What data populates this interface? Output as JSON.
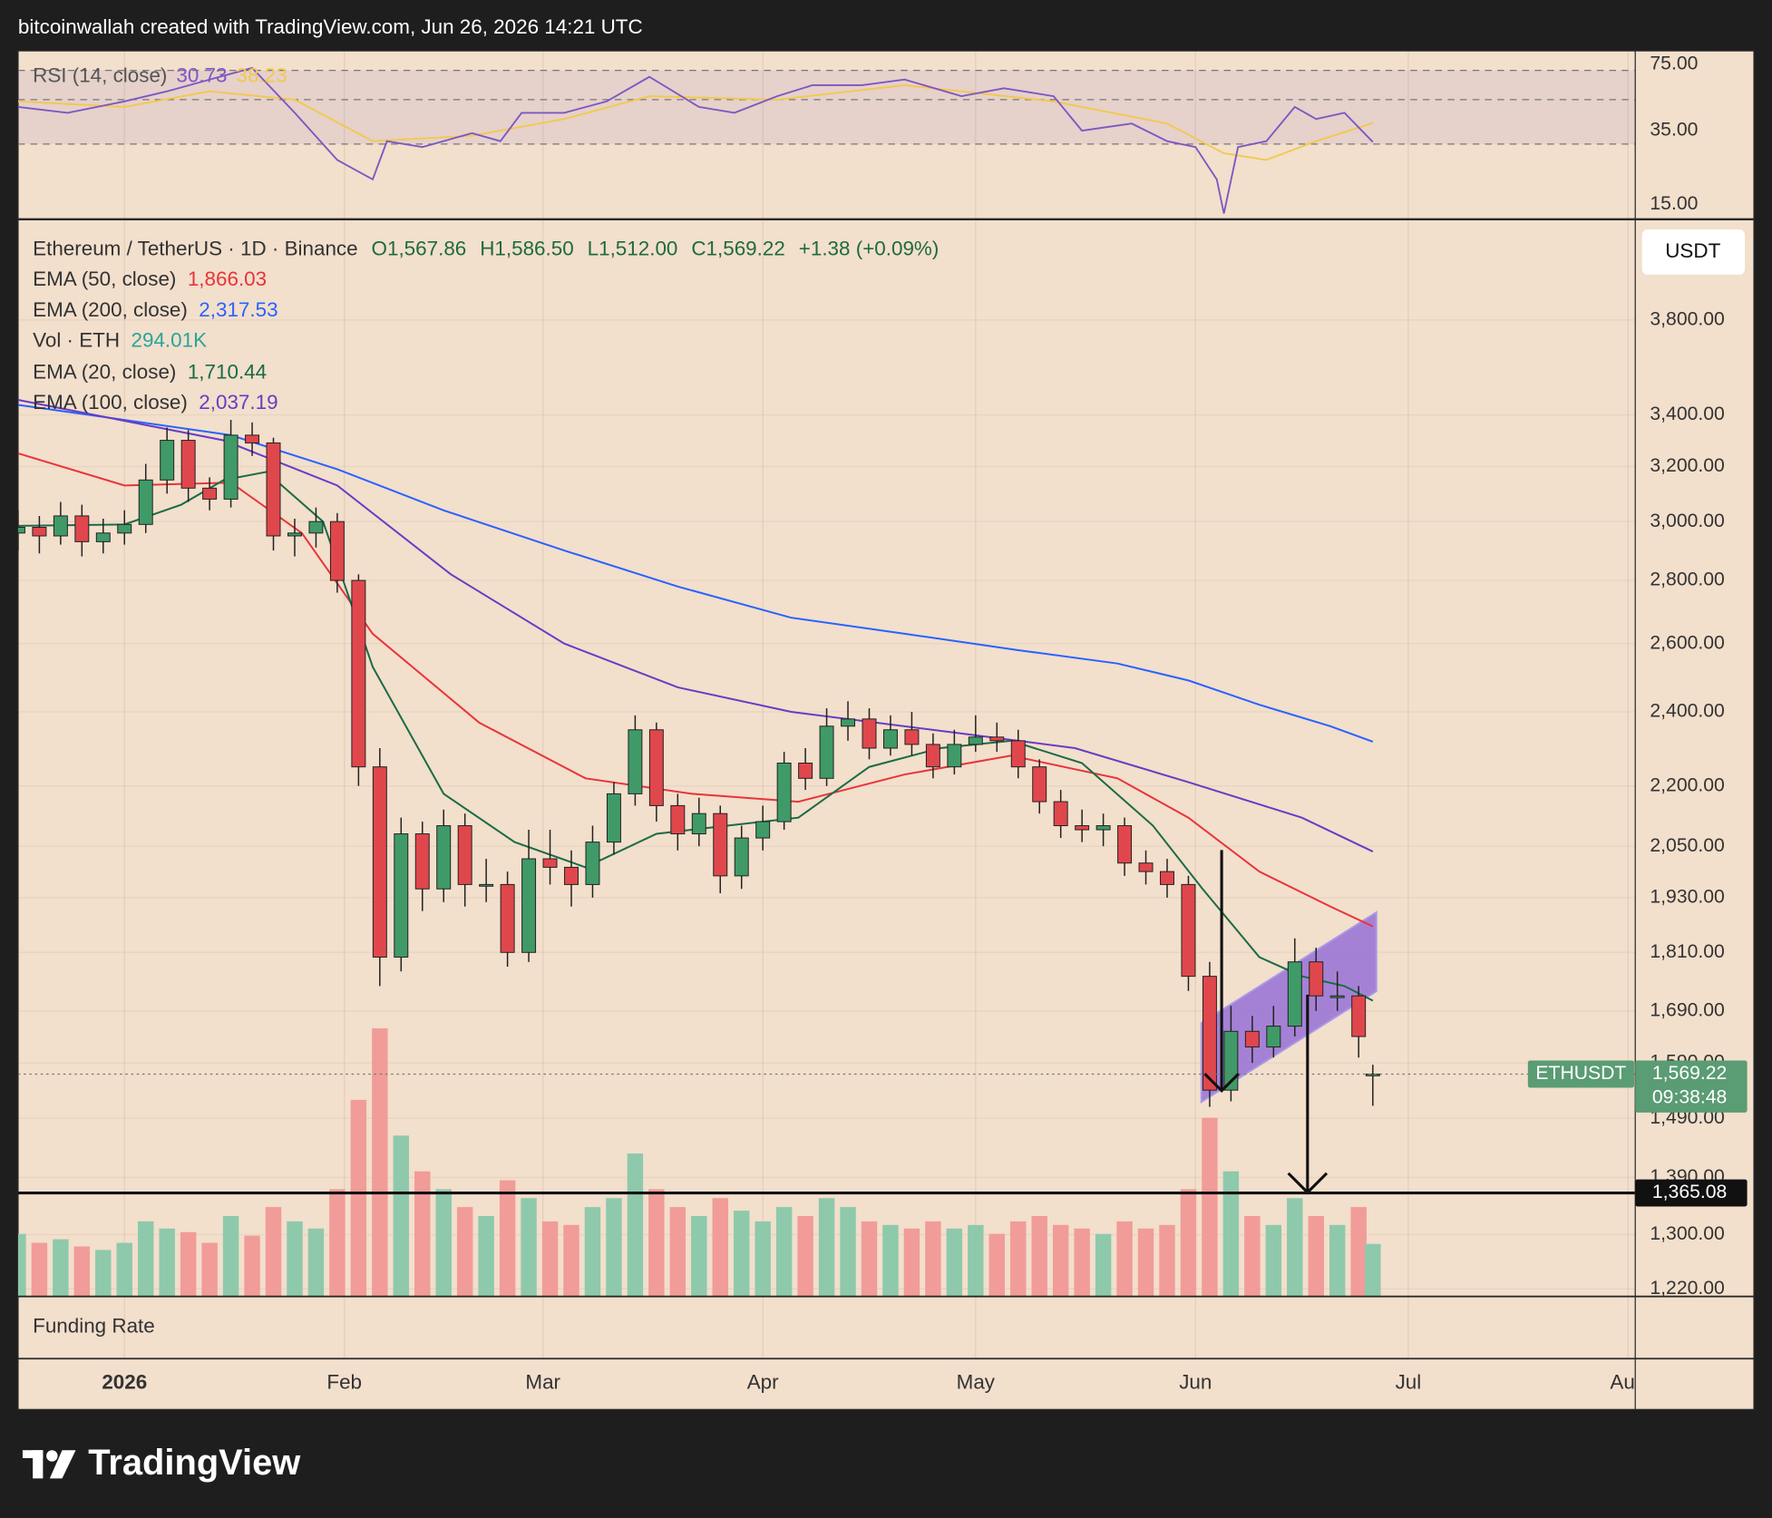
{
  "header": "bitcoinwallah created with TradingView.com, Jun 26, 2026 14:21 UTC",
  "brand": "TradingView",
  "chart_data": {
    "type": "candlestick",
    "title": "Ethereum / TetherUS · 1D · Binance",
    "quote": {
      "open": {
        "value": 1567.86,
        "label": "O1,567.86"
      },
      "high": {
        "value": 1586.5,
        "label": "H1,586.50"
      },
      "low": {
        "value": 1512,
        "label": "L1,512.00"
      },
      "close": {
        "value": 1569.22,
        "label": "C1,569.22"
      },
      "change": "+1.38 (+0.09%)",
      "color": "#1e6b3c"
    },
    "currency": "USDT",
    "x": [
      -15,
      -12,
      -9,
      -6,
      -3,
      0,
      3,
      6,
      9,
      12,
      15,
      18,
      21,
      24,
      27,
      30,
      33,
      36,
      39,
      42,
      45,
      48,
      51,
      54,
      57,
      60,
      63,
      66,
      69,
      72,
      75,
      78,
      81,
      84,
      87,
      90,
      93,
      96,
      99,
      102,
      105,
      108,
      111,
      114,
      117,
      120,
      123,
      126,
      129,
      132,
      135,
      138,
      141,
      144,
      147,
      150,
      153,
      156,
      159,
      162,
      165,
      168,
      171,
      174,
      176
    ],
    "open": [
      2960,
      2980,
      2950,
      3020,
      2930,
      2960,
      2990,
      3150,
      3300,
      3120,
      3080,
      3320,
      3290,
      2950,
      2960,
      3000,
      2800,
      2250,
      1800,
      2080,
      1950,
      2100,
      1960,
      1960,
      1810,
      2020,
      2000,
      1960,
      2060,
      2180,
      2350,
      2150,
      2080,
      2130,
      1980,
      2070,
      2110,
      2260,
      2220,
      2360,
      2380,
      2300,
      2350,
      2310,
      2250,
      2310,
      2330,
      2320,
      2250,
      2160,
      2100,
      2090,
      2100,
      2010,
      1990,
      1960,
      1760,
      1540,
      1650,
      1620,
      1660,
      1790,
      1720,
      1720,
      1567.86
    ],
    "high": [
      3040,
      3020,
      3070,
      3060,
      3010,
      3040,
      3210,
      3350,
      3340,
      3160,
      3380,
      3370,
      3310,
      3010,
      3050,
      3030,
      2820,
      2300,
      2120,
      2110,
      2140,
      2130,
      2020,
      1990,
      2090,
      2090,
      2040,
      2100,
      2210,
      2390,
      2370,
      2180,
      2170,
      2150,
      2100,
      2150,
      2290,
      2300,
      2410,
      2430,
      2410,
      2390,
      2400,
      2340,
      2350,
      2390,
      2370,
      2350,
      2270,
      2190,
      2140,
      2130,
      2120,
      2040,
      2020,
      1980,
      1790,
      1700,
      1680,
      1700,
      1840,
      1820,
      1770,
      1740,
      1586.5
    ],
    "low": [
      2900,
      2890,
      2920,
      2880,
      2890,
      2920,
      2960,
      3100,
      3070,
      3040,
      3050,
      3240,
      2900,
      2880,
      2910,
      2760,
      2200,
      1740,
      1770,
      1900,
      1920,
      1910,
      1920,
      1780,
      1790,
      1960,
      1910,
      1930,
      2030,
      2150,
      2110,
      2040,
      2050,
      1940,
      1950,
      2040,
      2090,
      2190,
      2200,
      2320,
      2270,
      2280,
      2280,
      2220,
      2230,
      2290,
      2290,
      2220,
      2130,
      2070,
      2060,
      2050,
      1980,
      1960,
      1930,
      1730,
      1510,
      1520,
      1590,
      1600,
      1640,
      1690,
      1690,
      1600,
      1512
    ],
    "close": [
      2980,
      2950,
      3020,
      2930,
      2960,
      2990,
      3150,
      3300,
      3120,
      3080,
      3320,
      3290,
      2950,
      2960,
      3000,
      2800,
      2250,
      1800,
      2080,
      1950,
      2100,
      1960,
      1960,
      1810,
      2020,
      2000,
      1960,
      2060,
      2180,
      2350,
      2150,
      2080,
      2130,
      1980,
      2070,
      2110,
      2260,
      2220,
      2360,
      2380,
      2300,
      2350,
      2310,
      2250,
      2310,
      2330,
      2320,
      2250,
      2160,
      2100,
      2090,
      2100,
      2010,
      1990,
      1960,
      1760,
      1540,
      1650,
      1620,
      1660,
      1790,
      1720,
      1720,
      1640,
      1569.22
    ],
    "up_color": "#3f9a68",
    "down_color": "#e0474c",
    "volume": {
      "name": "Vol · ETH",
      "value_label": "294.01K",
      "color": "#26a69a",
      "up_color": "#8ec9ab",
      "down_color": "#f19c98",
      "vlim": [
        0,
        1600
      ],
      "values": [
        350,
        300,
        320,
        280,
        260,
        300,
        420,
        380,
        360,
        300,
        450,
        340,
        500,
        420,
        380,
        600,
        1100,
        1500,
        900,
        700,
        600,
        500,
        450,
        650,
        550,
        420,
        400,
        500,
        550,
        800,
        600,
        500,
        450,
        550,
        480,
        420,
        500,
        450,
        550,
        500,
        420,
        400,
        380,
        420,
        380,
        400,
        350,
        420,
        450,
        400,
        380,
        350,
        420,
        380,
        400,
        600,
        1000,
        700,
        450,
        400,
        550,
        450,
        400,
        500,
        294.01
      ]
    },
    "series": [
      {
        "name": "EMA (50, close)",
        "value_label": "1,866.03",
        "color": "#e8343a",
        "x": [
          -15,
          0,
          15,
          25,
          35,
          50,
          65,
          80,
          95,
          110,
          125,
          140,
          150,
          160,
          170,
          176
        ],
        "values": [
          3250,
          3130,
          3140,
          2960,
          2630,
          2370,
          2220,
          2180,
          2160,
          2230,
          2280,
          2220,
          2120,
          1990,
          1910,
          1866.03
        ]
      },
      {
        "name": "EMA (200, close)",
        "value_label": "2,317.53",
        "color": "#2962ff",
        "x": [
          -15,
          0,
          15,
          30,
          45,
          62,
          78,
          94,
          110,
          126,
          140,
          150,
          160,
          170,
          176
        ],
        "values": [
          3440,
          3380,
          3320,
          3190,
          3040,
          2900,
          2780,
          2680,
          2630,
          2580,
          2540,
          2490,
          2420,
          2360,
          2317.53
        ]
      },
      {
        "name": "EMA (20, close)",
        "value_label": "1,710.44",
        "color": "#1a6b45",
        "x": [
          -15,
          0,
          8,
          14,
          20,
          28,
          35,
          45,
          55,
          65,
          75,
          85,
          95,
          105,
          115,
          125,
          135,
          145,
          152,
          160,
          166,
          172,
          176
        ],
        "values": [
          2985,
          2990,
          3060,
          3150,
          3180,
          3000,
          2530,
          2180,
          2060,
          2000,
          2080,
          2100,
          2120,
          2250,
          2300,
          2320,
          2260,
          2100,
          1950,
          1800,
          1760,
          1740,
          1710.44
        ]
      },
      {
        "name": "EMA (100, close)",
        "value_label": "2,037.19",
        "color": "#6a3bc4",
        "x": [
          -15,
          14,
          30,
          46,
          62,
          78,
          94,
          118,
          134,
          150,
          166,
          176
        ],
        "values": [
          3460,
          3300,
          3130,
          2820,
          2600,
          2470,
          2400,
          2340,
          2300,
          2210,
          2120,
          2037.19
        ]
      }
    ],
    "xlim": [
      -15,
      213
    ],
    "xticks": [
      {
        "value": 0,
        "label": "2026"
      },
      {
        "value": 31,
        "label": "Feb"
      },
      {
        "value": 59,
        "label": "Mar"
      },
      {
        "value": 90,
        "label": "Apr"
      },
      {
        "value": 120,
        "label": "May"
      },
      {
        "value": 151,
        "label": "Jun"
      },
      {
        "value": 181,
        "label": "Jul"
      },
      {
        "value": 212,
        "label": "Aug"
      }
    ],
    "ylim": [
      1209,
      4271
    ],
    "log_scale": true,
    "grid": true,
    "yticks": [
      {
        "value": 3800,
        "label": "3,800.00"
      },
      {
        "value": 3400,
        "label": "3,400.00"
      },
      {
        "value": 3200,
        "label": "3,200.00"
      },
      {
        "value": 3000,
        "label": "3,000.00"
      },
      {
        "value": 2800,
        "label": "2,800.00"
      },
      {
        "value": 2600,
        "label": "2,600.00"
      },
      {
        "value": 2400,
        "label": "2,400.00"
      },
      {
        "value": 2200,
        "label": "2,200.00"
      },
      {
        "value": 2050,
        "label": "2,050.00"
      },
      {
        "value": 1930,
        "label": "1,930.00"
      },
      {
        "value": 1810,
        "label": "1,810.00"
      },
      {
        "value": 1690,
        "label": "1,690.00"
      },
      {
        "value": 1590,
        "label": "1,590.00"
      },
      {
        "value": 1490,
        "label": "1,490.00"
      },
      {
        "value": 1390,
        "label": "1,390.00"
      },
      {
        "value": 1300,
        "label": "1,300.00"
      },
      {
        "value": 1220,
        "label": "1,220.00"
      }
    ],
    "last_price": {
      "symbol": "ETHUSDT",
      "value": 1569.22,
      "label": "1,569.22",
      "countdown": "09:38:48",
      "color": "#5a9c74"
    },
    "level": {
      "value": 1365.08,
      "label": "1,365.08"
    },
    "rsi": {
      "name": "RSI (14, close)",
      "value_label": "30.73",
      "ma_label": "38.23",
      "color": "#7e57c2",
      "ma_color": "#f2c94c",
      "x": [
        -15,
        -8,
        0,
        6,
        12,
        18,
        24,
        30,
        35,
        37,
        42,
        49,
        53,
        56,
        62,
        68,
        74,
        81,
        86,
        92,
        97,
        104,
        110,
        118,
        124,
        131,
        135,
        142,
        147,
        151,
        154,
        155,
        157,
        161,
        165,
        168,
        172,
        176
      ],
      "values": [
        46,
        43,
        49,
        55,
        63,
        72,
        43,
        25,
        20,
        31,
        29,
        34,
        31,
        43,
        43,
        49,
        65,
        46,
        43,
        52,
        59,
        59,
        63,
        52,
        57,
        52,
        35,
        38,
        31,
        29,
        20,
        13.5,
        29,
        31,
        46,
        40,
        43,
        30.73
      ],
      "ma_x": [
        -15,
        0,
        12,
        24,
        35,
        49,
        62,
        74,
        92,
        110,
        131,
        147,
        155,
        161,
        168,
        176
      ],
      "ma": [
        49,
        46,
        55,
        50,
        31,
        33,
        40,
        52,
        50,
        59,
        49,
        38,
        27,
        25,
        31,
        38.23
      ],
      "ylim": [
        12.8,
        87.6
      ],
      "log_scale": true,
      "yticks": [
        {
          "value": 75,
          "label": "75.00"
        },
        {
          "value": 35,
          "label": "35.00"
        },
        {
          "value": 15,
          "label": "15.00"
        }
      ],
      "levels": [
        30,
        50,
        70
      ]
    },
    "funding": {
      "name": "Funding Rate"
    }
  }
}
